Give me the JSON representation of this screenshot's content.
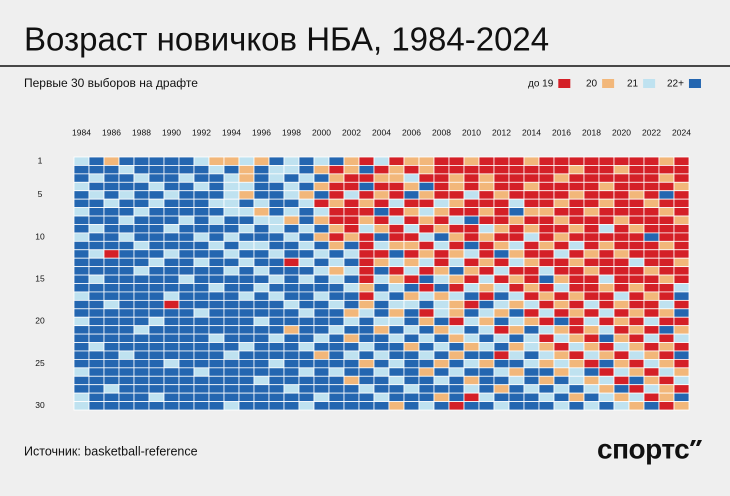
{
  "chart_data": {
    "type": "heatmap",
    "title": "Возраст новичков НБА, 1984-2024",
    "subtitle": "Первые 30 выборов на драфте",
    "source": "Источник: basketball-reference",
    "logo": "спортс",
    "legend": [
      {
        "value": 19,
        "label": "до 19",
        "color": "#d42027"
      },
      {
        "value": 20,
        "label": "20",
        "color": "#f2b77a"
      },
      {
        "value": 21,
        "label": "21",
        "color": "#bfe2f0"
      },
      {
        "value": 22,
        "label": "22+",
        "color": "#2466b0"
      }
    ],
    "x": [
      1984,
      null,
      1986,
      null,
      1988,
      null,
      1990,
      null,
      1992,
      null,
      1994,
      null,
      1996,
      null,
      1998,
      null,
      2000,
      null,
      2002,
      null,
      2004,
      null,
      2006,
      null,
      2008,
      null,
      2010,
      null,
      2012,
      null,
      2014,
      null,
      2016,
      null,
      2018,
      null,
      2020,
      null,
      2022,
      null,
      2024
    ],
    "y": [
      1,
      null,
      null,
      null,
      5,
      null,
      null,
      null,
      null,
      10,
      null,
      null,
      null,
      null,
      15,
      null,
      null,
      null,
      null,
      20,
      null,
      null,
      null,
      null,
      25,
      null,
      null,
      null,
      null,
      30
    ],
    "values": [
      [
        21,
        22,
        20,
        22,
        22,
        22,
        22,
        22,
        21,
        20,
        20,
        21,
        20,
        22,
        21,
        22,
        21,
        22,
        20,
        19,
        21,
        19,
        20,
        20,
        19,
        19,
        20,
        19,
        19,
        19,
        20,
        19,
        19,
        19,
        19,
        19,
        19,
        19,
        19,
        20,
        19
      ],
      [
        22,
        22,
        22,
        21,
        22,
        22,
        22,
        22,
        22,
        21,
        22,
        20,
        22,
        21,
        21,
        22,
        20,
        19,
        20,
        22,
        19,
        20,
        19,
        20,
        19,
        19,
        19,
        19,
        19,
        19,
        19,
        19,
        19,
        20,
        19,
        19,
        20,
        19,
        19,
        19,
        19
      ],
      [
        22,
        21,
        22,
        22,
        21,
        22,
        22,
        21,
        22,
        22,
        21,
        20,
        22,
        21,
        22,
        21,
        22,
        20,
        19,
        19,
        20,
        20,
        21,
        19,
        19,
        20,
        19,
        20,
        19,
        19,
        19,
        19,
        20,
        19,
        19,
        19,
        19,
        19,
        19,
        20,
        19
      ],
      [
        21,
        22,
        22,
        22,
        22,
        21,
        22,
        22,
        21,
        22,
        21,
        21,
        22,
        22,
        21,
        22,
        20,
        19,
        19,
        22,
        19,
        19,
        20,
        22,
        19,
        20,
        19,
        20,
        19,
        19,
        20,
        19,
        19,
        19,
        19,
        20,
        19,
        19,
        19,
        19,
        20
      ],
      [
        22,
        21,
        22,
        21,
        22,
        22,
        21,
        22,
        22,
        22,
        21,
        20,
        22,
        22,
        21,
        20,
        22,
        19,
        21,
        19,
        20,
        19,
        22,
        20,
        19,
        19,
        21,
        19,
        20,
        19,
        19,
        19,
        19,
        20,
        19,
        19,
        19,
        20,
        19,
        22,
        19
      ],
      [
        22,
        22,
        21,
        22,
        22,
        21,
        22,
        22,
        22,
        21,
        21,
        22,
        21,
        22,
        22,
        21,
        19,
        20,
        19,
        20,
        19,
        21,
        19,
        19,
        21,
        20,
        19,
        19,
        19,
        21,
        19,
        19,
        20,
        19,
        19,
        20,
        19,
        19,
        20,
        19,
        19
      ],
      [
        21,
        22,
        22,
        22,
        21,
        22,
        22,
        22,
        22,
        22,
        21,
        21,
        20,
        22,
        21,
        22,
        21,
        19,
        19,
        19,
        22,
        19,
        20,
        21,
        20,
        19,
        19,
        20,
        19,
        22,
        20,
        20,
        19,
        19,
        20,
        19,
        19,
        19,
        19,
        20,
        19
      ],
      [
        22,
        22,
        22,
        21,
        22,
        22,
        22,
        21,
        22,
        21,
        22,
        22,
        21,
        21,
        20,
        22,
        20,
        19,
        19,
        20,
        19,
        21,
        19,
        20,
        19,
        21,
        22,
        19,
        19,
        20,
        19,
        19,
        20,
        19,
        19,
        19,
        20,
        19,
        19,
        19,
        20
      ],
      [
        22,
        21,
        22,
        22,
        22,
        22,
        21,
        22,
        22,
        22,
        22,
        21,
        22,
        21,
        22,
        21,
        22,
        20,
        19,
        21,
        20,
        19,
        21,
        19,
        20,
        19,
        19,
        21,
        20,
        19,
        20,
        19,
        19,
        20,
        19,
        21,
        19,
        20,
        19,
        19,
        19
      ],
      [
        21,
        22,
        22,
        21,
        22,
        22,
        22,
        22,
        21,
        22,
        21,
        22,
        22,
        22,
        21,
        22,
        20,
        19,
        20,
        19,
        22,
        19,
        19,
        21,
        22,
        20,
        19,
        20,
        19,
        19,
        21,
        19,
        20,
        19,
        19,
        19,
        19,
        19,
        22,
        19,
        19
      ],
      [
        22,
        22,
        22,
        22,
        21,
        22,
        22,
        22,
        22,
        21,
        22,
        21,
        21,
        22,
        22,
        21,
        22,
        20,
        22,
        19,
        21,
        20,
        20,
        19,
        21,
        19,
        22,
        19,
        20,
        21,
        19,
        20,
        19,
        21,
        19,
        20,
        19,
        19,
        19,
        20,
        19
      ],
      [
        22,
        21,
        19,
        22,
        22,
        22,
        21,
        22,
        22,
        22,
        21,
        22,
        22,
        21,
        22,
        22,
        21,
        22,
        21,
        19,
        19,
        22,
        19,
        20,
        19,
        20,
        21,
        19,
        22,
        20,
        19,
        19,
        21,
        19,
        20,
        19,
        20,
        19,
        19,
        19,
        19
      ],
      [
        22,
        22,
        22,
        22,
        22,
        21,
        22,
        22,
        21,
        22,
        22,
        21,
        22,
        22,
        19,
        21,
        22,
        21,
        22,
        19,
        20,
        21,
        20,
        21,
        19,
        21,
        19,
        20,
        19,
        21,
        20,
        19,
        19,
        20,
        19,
        19,
        19,
        21,
        19,
        19,
        20
      ],
      [
        22,
        22,
        22,
        22,
        21,
        22,
        22,
        22,
        22,
        22,
        21,
        22,
        21,
        22,
        22,
        22,
        21,
        20,
        21,
        19,
        22,
        19,
        21,
        19,
        20,
        22,
        20,
        19,
        21,
        19,
        19,
        21,
        19,
        19,
        20,
        19,
        19,
        19,
        20,
        19,
        19
      ],
      [
        22,
        21,
        22,
        22,
        22,
        22,
        22,
        21,
        22,
        22,
        22,
        22,
        22,
        21,
        22,
        21,
        22,
        21,
        22,
        19,
        21,
        20,
        19,
        22,
        21,
        20,
        19,
        21,
        19,
        20,
        19,
        22,
        20,
        19,
        19,
        21,
        19,
        19,
        19,
        20,
        19
      ],
      [
        22,
        22,
        22,
        22,
        22,
        22,
        22,
        22,
        22,
        21,
        22,
        22,
        21,
        22,
        22,
        22,
        22,
        22,
        21,
        20,
        22,
        21,
        22,
        19,
        22,
        19,
        21,
        20,
        21,
        19,
        20,
        19,
        21,
        19,
        19,
        20,
        19,
        20,
        19,
        19,
        21
      ],
      [
        21,
        22,
        22,
        22,
        22,
        22,
        21,
        22,
        22,
        22,
        22,
        21,
        22,
        21,
        22,
        22,
        21,
        22,
        22,
        19,
        21,
        22,
        20,
        21,
        20,
        21,
        22,
        19,
        22,
        21,
        19,
        20,
        19,
        20,
        19,
        19,
        21,
        19,
        20,
        19,
        22
      ],
      [
        22,
        22,
        21,
        22,
        22,
        22,
        19,
        22,
        22,
        22,
        22,
        22,
        22,
        22,
        21,
        22,
        22,
        21,
        22,
        20,
        22,
        21,
        21,
        22,
        21,
        20,
        19,
        22,
        21,
        20,
        21,
        19,
        20,
        19,
        21,
        19,
        20,
        19,
        19,
        21,
        19
      ],
      [
        22,
        22,
        22,
        22,
        22,
        22,
        22,
        22,
        21,
        22,
        22,
        22,
        22,
        22,
        22,
        21,
        22,
        22,
        20,
        21,
        22,
        20,
        22,
        19,
        21,
        20,
        22,
        21,
        20,
        22,
        19,
        21,
        19,
        20,
        19,
        21,
        19,
        20,
        19,
        20,
        22
      ],
      [
        21,
        22,
        22,
        22,
        22,
        21,
        22,
        22,
        22,
        22,
        22,
        22,
        21,
        22,
        22,
        22,
        22,
        22,
        21,
        22,
        21,
        21,
        22,
        20,
        22,
        19,
        21,
        20,
        22,
        21,
        20,
        19,
        22,
        19,
        21,
        19,
        20,
        19,
        21,
        19,
        19
      ],
      [
        22,
        22,
        22,
        22,
        21,
        22,
        22,
        22,
        22,
        22,
        22,
        22,
        22,
        22,
        20,
        22,
        22,
        21,
        22,
        22,
        20,
        22,
        21,
        22,
        20,
        21,
        22,
        21,
        19,
        20,
        22,
        21,
        20,
        19,
        20,
        21,
        19,
        20,
        19,
        22,
        20
      ],
      [
        22,
        22,
        22,
        22,
        22,
        22,
        22,
        22,
        22,
        21,
        22,
        22,
        22,
        21,
        22,
        22,
        21,
        22,
        20,
        22,
        22,
        21,
        22,
        21,
        22,
        20,
        21,
        22,
        21,
        22,
        21,
        19,
        21,
        20,
        19,
        22,
        20,
        19,
        21,
        19,
        21
      ],
      [
        22,
        21,
        22,
        22,
        22,
        22,
        22,
        22,
        22,
        22,
        22,
        21,
        22,
        22,
        22,
        21,
        22,
        22,
        22,
        21,
        22,
        22,
        20,
        22,
        21,
        22,
        20,
        21,
        22,
        20,
        21,
        20,
        19,
        21,
        20,
        19,
        21,
        20,
        19,
        20,
        19
      ],
      [
        22,
        22,
        22,
        21,
        22,
        22,
        22,
        22,
        22,
        22,
        21,
        22,
        22,
        22,
        22,
        22,
        20,
        22,
        21,
        22,
        21,
        22,
        22,
        21,
        22,
        20,
        22,
        22,
        19,
        21,
        22,
        21,
        20,
        19,
        21,
        20,
        19,
        21,
        20,
        19,
        22
      ],
      [
        22,
        22,
        22,
        22,
        22,
        22,
        21,
        22,
        22,
        22,
        22,
        22,
        22,
        21,
        22,
        22,
        22,
        22,
        22,
        20,
        22,
        21,
        22,
        22,
        20,
        22,
        21,
        20,
        22,
        22,
        21,
        20,
        21,
        20,
        19,
        22,
        20,
        19,
        21,
        20,
        19
      ],
      [
        21,
        22,
        22,
        22,
        22,
        22,
        22,
        22,
        21,
        22,
        22,
        22,
        22,
        22,
        22,
        21,
        22,
        21,
        22,
        22,
        21,
        22,
        22,
        20,
        22,
        21,
        22,
        22,
        21,
        20,
        22,
        22,
        20,
        21,
        22,
        19,
        21,
        20,
        19,
        21,
        20
      ],
      [
        22,
        22,
        22,
        22,
        22,
        22,
        22,
        22,
        22,
        22,
        22,
        22,
        21,
        22,
        22,
        22,
        22,
        22,
        20,
        22,
        22,
        21,
        22,
        22,
        21,
        22,
        20,
        22,
        22,
        21,
        22,
        20,
        22,
        21,
        20,
        21,
        19,
        22,
        20,
        19,
        21
      ],
      [
        22,
        22,
        21,
        22,
        22,
        22,
        22,
        22,
        22,
        22,
        22,
        22,
        22,
        22,
        21,
        22,
        22,
        22,
        22,
        21,
        22,
        22,
        21,
        22,
        22,
        22,
        21,
        22,
        20,
        22,
        21,
        22,
        21,
        22,
        21,
        20,
        22,
        19,
        21,
        20,
        19
      ],
      [
        21,
        22,
        22,
        22,
        22,
        21,
        22,
        22,
        22,
        22,
        22,
        22,
        22,
        22,
        22,
        22,
        21,
        22,
        22,
        22,
        21,
        22,
        22,
        22,
        20,
        22,
        19,
        21,
        22,
        22,
        22,
        21,
        22,
        20,
        22,
        21,
        20,
        21,
        19,
        20,
        22
      ],
      [
        21,
        22,
        22,
        22,
        22,
        22,
        22,
        22,
        22,
        22,
        21,
        22,
        22,
        22,
        22,
        21,
        22,
        22,
        22,
        22,
        22,
        20,
        22,
        21,
        22,
        19,
        22,
        22,
        21,
        22,
        22,
        22,
        21,
        22,
        21,
        22,
        21,
        20,
        22,
        19,
        20
      ]
    ]
  }
}
